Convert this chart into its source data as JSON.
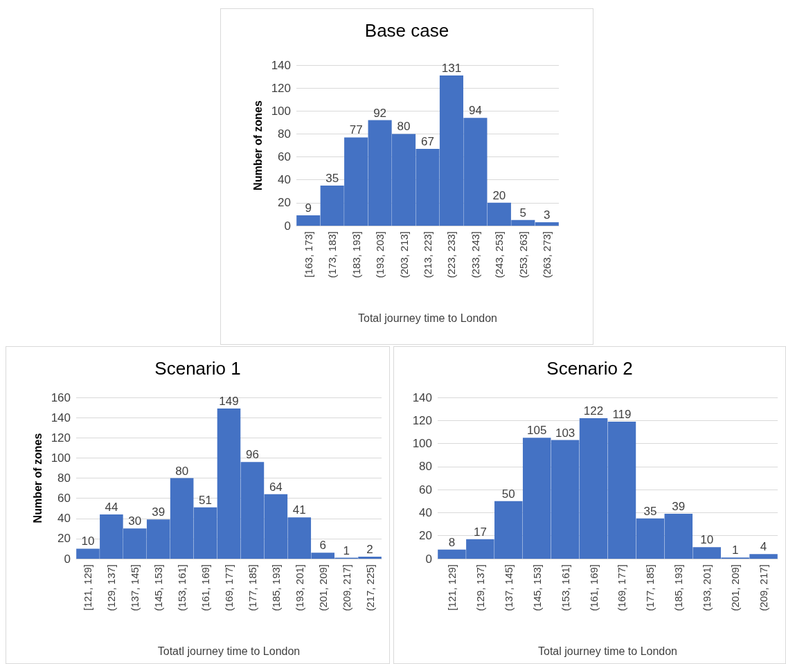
{
  "chart_data": [
    {
      "type": "bar",
      "title": "Base case",
      "xlabel": "Total journey time to London",
      "ylabel": "Number of zones",
      "categories": [
        "[163, 173]",
        "(173, 183]",
        "(183, 193]",
        "(193, 203]",
        "(203, 213]",
        "(213, 223]",
        "(223, 233]",
        "(233, 243]",
        "(243, 253]",
        "(253, 263]",
        "(263, 273]"
      ],
      "values": [
        9,
        35,
        77,
        92,
        80,
        67,
        131,
        94,
        20,
        5,
        3
      ],
      "color": "#4472c4",
      "ylim": [
        0,
        140
      ],
      "yticks": [
        0,
        20,
        40,
        60,
        80,
        100,
        120,
        140
      ],
      "grid": "y",
      "data_labels": true
    },
    {
      "type": "bar",
      "title": "Scenario 1",
      "xlabel": "Totatl journey time to London",
      "ylabel": "Number of zones",
      "categories": [
        "[121, 129]",
        "(129, 137]",
        "(137, 145]",
        "(145, 153]",
        "(153, 161]",
        "(161, 169]",
        "(169, 177]",
        "(177, 185]",
        "(185, 193]",
        "(193, 201]",
        "(201, 209]",
        "(209, 217]",
        "(217, 225]"
      ],
      "values": [
        10,
        44,
        30,
        39,
        80,
        51,
        149,
        96,
        64,
        41,
        6,
        1,
        2
      ],
      "color": "#4472c4",
      "ylim": [
        0,
        160
      ],
      "yticks": [
        0,
        20,
        40,
        60,
        80,
        100,
        120,
        140,
        160
      ],
      "grid": "y",
      "data_labels": true
    },
    {
      "type": "bar",
      "title": "Scenario 2",
      "xlabel": "Total journey time to London",
      "categories": [
        "[121, 129]",
        "(129, 137]",
        "(137, 145]",
        "(145, 153]",
        "(153, 161]",
        "(161, 169]",
        "(169, 177]",
        "(177, 185]",
        "(185, 193]",
        "(193, 201]",
        "(201, 209]",
        "(209, 217]"
      ],
      "values": [
        8,
        17,
        50,
        105,
        103,
        122,
        119,
        35,
        39,
        10,
        1,
        4
      ],
      "color": "#4472c4",
      "ylim": [
        0,
        140
      ],
      "yticks": [
        0,
        20,
        40,
        60,
        80,
        100,
        120,
        140
      ],
      "grid": "y",
      "data_labels": true
    }
  ]
}
